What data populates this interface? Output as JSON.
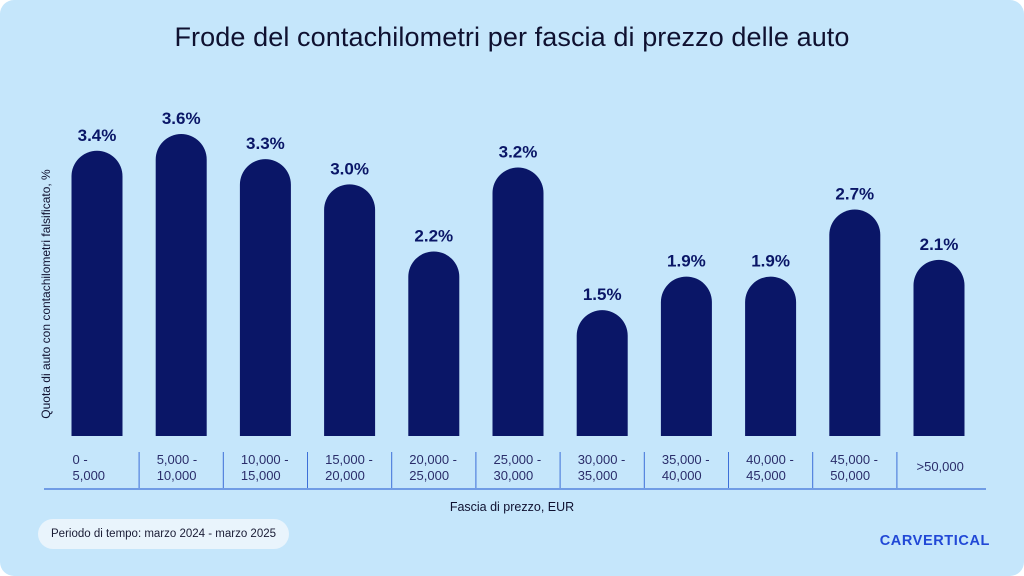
{
  "chart_data": {
    "type": "bar",
    "title": "Frode del contachilometri per fascia di prezzo delle auto",
    "xlabel": "Fascia di prezzo, EUR",
    "ylabel": "Quota di auto con contachilometri falsificato, %",
    "categories": [
      [
        "0 -",
        "5,000"
      ],
      [
        "5,000 -",
        "10,000"
      ],
      [
        "10,000 -",
        "15,000"
      ],
      [
        "15,000 -",
        "20,000"
      ],
      [
        "20,000 -",
        "25,000"
      ],
      [
        "25,000 -",
        "30,000"
      ],
      [
        "30,000 -",
        "35,000"
      ],
      [
        "35,000 -",
        "40,000"
      ],
      [
        "40,000 -",
        "45,000"
      ],
      [
        "45,000 -",
        "50,000"
      ],
      [
        ">50,000"
      ]
    ],
    "values": [
      3.4,
      3.6,
      3.3,
      3.0,
      2.2,
      3.2,
      1.5,
      1.9,
      1.9,
      2.7,
      2.1
    ],
    "value_labels": [
      "3.4%",
      "3.6%",
      "3.3%",
      "3.0%",
      "2.2%",
      "3.2%",
      "1.5%",
      "1.9%",
      "1.9%",
      "2.7%",
      "2.1%"
    ],
    "ylim": [
      0,
      3.6
    ],
    "grid": false,
    "bar_color": "#0a1667",
    "label_color": "#0a1667"
  },
  "footer": {
    "period": "Periodo di tempo: marzo 2024 - marzo 2025",
    "brand": "CARVERTICAL",
    "brand_color": "#2148d6"
  },
  "colors": {
    "background": "#c5e6fb",
    "separator": "#3d6fd8"
  }
}
